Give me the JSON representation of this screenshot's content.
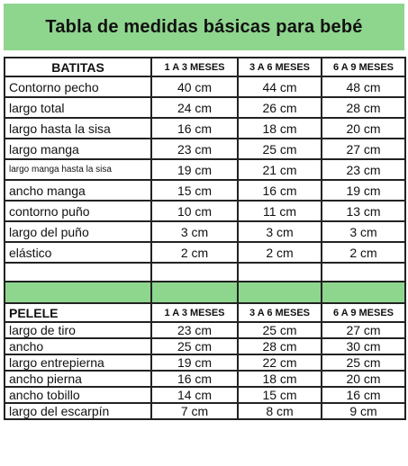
{
  "title": "Tabla de medidas básicas para bebé",
  "batitas": {
    "header": [
      "BATITAS",
      "1 A 3 MESES",
      "3 A 6 MESES",
      "6 A 9 MESES"
    ],
    "rows": [
      {
        "label": "Contorno pecho",
        "values": [
          "40 cm",
          "44 cm",
          "48 cm"
        ]
      },
      {
        "label": "largo total",
        "values": [
          "24 cm",
          "26 cm",
          "28 cm"
        ]
      },
      {
        "label": "largo hasta la sisa",
        "values": [
          "16 cm",
          "18 cm",
          "20 cm"
        ]
      },
      {
        "label": "largo manga",
        "values": [
          "23 cm",
          "25 cm",
          "27 cm"
        ]
      },
      {
        "label": "largo manga hasta la sisa",
        "values": [
          "19 cm",
          "21 cm",
          "23 cm"
        ]
      },
      {
        "label": "ancho manga",
        "values": [
          "15 cm",
          "16 cm",
          "19 cm"
        ]
      },
      {
        "label": "contorno puño",
        "values": [
          "10 cm",
          "11 cm",
          "13 cm"
        ]
      },
      {
        "label": "largo del puño",
        "values": [
          "3 cm",
          "3 cm",
          "3 cm"
        ]
      },
      {
        "label": "elástico",
        "values": [
          "2 cm",
          "2 cm",
          "2 cm"
        ]
      }
    ]
  },
  "pelele": {
    "header": [
      "PELELE",
      "1 A 3 MESES",
      "3 A 6 MESES",
      "6 A 9 MESES"
    ],
    "rows": [
      {
        "label": "largo de tiro",
        "values": [
          "23 cm",
          "25 cm",
          "27 cm"
        ]
      },
      {
        "label": "ancho",
        "values": [
          "25 cm",
          "28 cm",
          "30 cm"
        ]
      },
      {
        "label": "largo entrepierna",
        "values": [
          "19 cm",
          "22 cm",
          "25 cm"
        ]
      },
      {
        "label": "ancho pierna",
        "values": [
          "16 cm",
          "18 cm",
          "20 cm"
        ]
      },
      {
        "label": "ancho tobillo",
        "values": [
          "14 cm",
          "15 cm",
          "16 cm"
        ]
      },
      {
        "label": "largo del escarpín",
        "values": [
          "7 cm",
          "8 cm",
          "9 cm"
        ]
      }
    ]
  },
  "colors": {
    "accent_green": "#8ed58e",
    "border": "#222222"
  }
}
